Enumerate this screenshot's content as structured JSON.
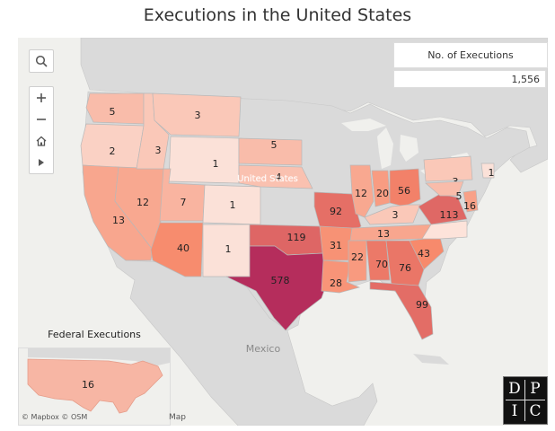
{
  "title": "Executions in the United States",
  "legend": {
    "title": "No. of Executions",
    "total": "1,556"
  },
  "basemap": {
    "country_label": "United States",
    "mexico_label": "Mexico",
    "attribution": "© Mapbox © OSM",
    "map_label": "Map"
  },
  "federal": {
    "title": "Federal Executions",
    "count": "16"
  },
  "logo": {
    "letters": [
      "D",
      "P",
      "I",
      "C"
    ]
  },
  "colors": {
    "water": "#f0f0ed",
    "land": "#dadada",
    "low": "#fbe1d8",
    "high": "#b52d5c"
  },
  "states": [
    {
      "name": "Washington",
      "value": 5
    },
    {
      "name": "Oregon",
      "value": 2
    },
    {
      "name": "California",
      "value": 13
    },
    {
      "name": "Nevada",
      "value": 12
    },
    {
      "name": "Idaho",
      "value": 3
    },
    {
      "name": "Montana",
      "value": 3
    },
    {
      "name": "Wyoming",
      "value": 1
    },
    {
      "name": "Utah",
      "value": 7
    },
    {
      "name": "Colorado",
      "value": 1
    },
    {
      "name": "Arizona",
      "value": 40
    },
    {
      "name": "New Mexico",
      "value": 1
    },
    {
      "name": "South Dakota",
      "value": 5
    },
    {
      "name": "Nebraska",
      "value": 4
    },
    {
      "name": "Oklahoma",
      "value": 119
    },
    {
      "name": "Texas",
      "value": 578
    },
    {
      "name": "Missouri",
      "value": 92
    },
    {
      "name": "Arkansas",
      "value": 31
    },
    {
      "name": "Louisiana",
      "value": 28
    },
    {
      "name": "Illinois",
      "value": 12
    },
    {
      "name": "Indiana",
      "value": 20
    },
    {
      "name": "Ohio",
      "value": 56
    },
    {
      "name": "Kentucky",
      "value": 3
    },
    {
      "name": "Tennessee",
      "value": 13
    },
    {
      "name": "Mississippi",
      "value": 22
    },
    {
      "name": "Alabama",
      "value": 70
    },
    {
      "name": "Georgia",
      "value": 76
    },
    {
      "name": "South Carolina",
      "value": 43
    },
    {
      "name": "Florida",
      "value": 99
    },
    {
      "name": "Virginia",
      "value": 113
    },
    {
      "name": "North Carolina",
      "value": null
    },
    {
      "name": "Pennsylvania",
      "value": 3
    },
    {
      "name": "Maryland",
      "value": 5
    },
    {
      "name": "Delaware",
      "value": 16
    },
    {
      "name": "Connecticut",
      "value": 1
    }
  ]
}
